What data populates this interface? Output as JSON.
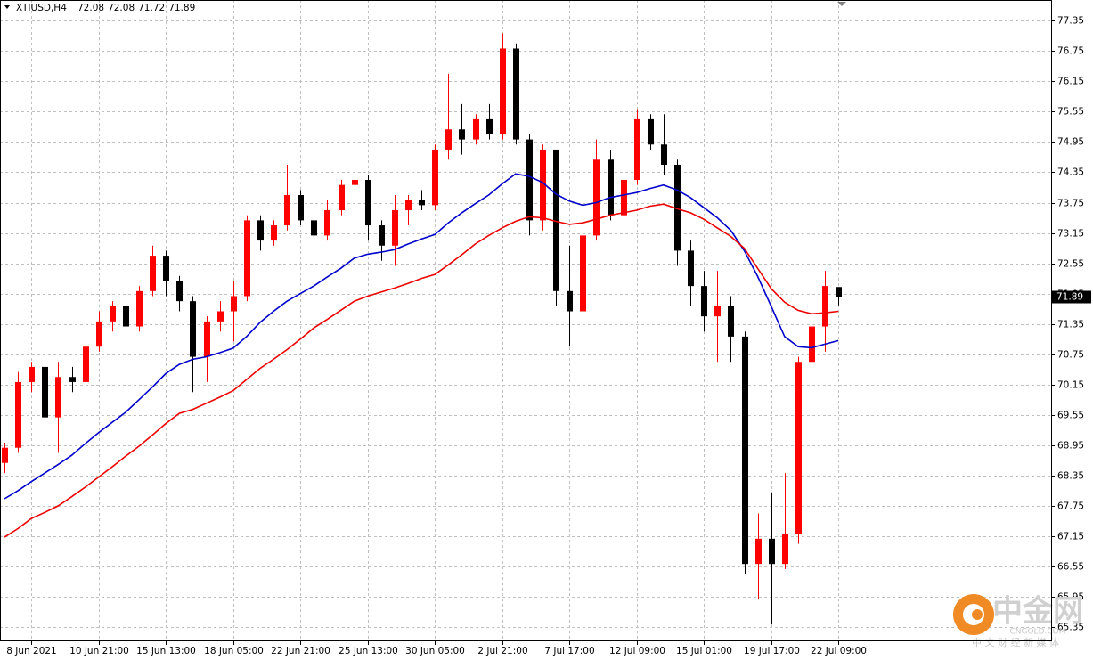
{
  "header": {
    "symbol": "XTIUSD,H4"
  },
  "watermark": {
    "brand": "中金网",
    "site": "CNGOLD.COM",
    "slogan": "中 文 财 经 新 媒 体"
  },
  "chart_data": {
    "type": "candlestick",
    "categories": [
      null,
      null,
      "8 Jun 2021",
      null,
      null,
      null,
      null,
      "10 Jun 21:00",
      null,
      null,
      null,
      null,
      "15 Jun 13:00",
      null,
      null,
      null,
      null,
      "18 Jun 05:00",
      null,
      null,
      null,
      null,
      "22 Jun 21:00",
      null,
      null,
      null,
      null,
      "25 Jun 13:00",
      null,
      null,
      null,
      null,
      "30 Jun 05:00",
      null,
      null,
      null,
      null,
      "2 Jul 21:00",
      null,
      null,
      null,
      null,
      "7 Jul 17:00",
      null,
      null,
      null,
      null,
      "12 Jul 09:00",
      null,
      null,
      null,
      null,
      "15 Jul 01:00",
      null,
      null,
      null,
      null,
      "19 Jul 17:00",
      null,
      null,
      null,
      null,
      "22 Jul 09:00"
    ],
    "open": [
      68.6,
      68.9,
      70.2,
      70.5,
      69.5,
      70.3,
      70.2,
      70.9,
      71.4,
      71.7,
      71.3,
      72.0,
      72.7,
      72.2,
      71.8,
      70.7,
      71.4,
      71.6,
      71.9,
      73.4,
      73.0,
      73.3,
      73.9,
      73.4,
      73.1,
      73.6,
      74.1,
      74.2,
      73.3,
      72.9,
      73.6,
      73.8,
      73.7,
      74.8,
      75.2,
      75.0,
      75.4,
      75.1,
      76.8,
      75.0,
      73.4,
      74.8,
      72.0,
      71.6,
      73.1,
      74.6,
      73.5,
      74.2,
      75.4,
      74.9,
      74.5,
      72.8,
      72.1,
      71.5,
      71.7,
      71.1,
      66.6,
      67.1,
      66.6,
      67.2,
      70.6,
      71.3,
      72.08
    ],
    "high": [
      69.0,
      70.4,
      70.6,
      70.6,
      70.6,
      70.5,
      71.0,
      71.6,
      71.8,
      71.8,
      72.1,
      72.9,
      72.8,
      72.3,
      71.9,
      71.5,
      71.8,
      72.2,
      73.5,
      73.5,
      73.4,
      74.5,
      74.0,
      73.5,
      73.8,
      74.2,
      74.4,
      74.3,
      73.4,
      73.9,
      73.9,
      74.0,
      74.9,
      76.3,
      75.7,
      75.5,
      75.7,
      77.1,
      76.9,
      75.1,
      74.9,
      74.8,
      72.9,
      73.3,
      75.0,
      74.8,
      74.4,
      75.6,
      75.5,
      75.5,
      74.6,
      73.0,
      72.4,
      72.4,
      71.9,
      71.2,
      67.6,
      68.0,
      68.4,
      70.7,
      71.4,
      72.4,
      72.08
    ],
    "low": [
      68.4,
      68.8,
      70.0,
      69.3,
      68.8,
      70.0,
      70.1,
      70.8,
      71.2,
      71.0,
      71.2,
      71.9,
      71.9,
      71.6,
      70.0,
      70.2,
      71.2,
      71.0,
      71.8,
      72.8,
      72.9,
      73.2,
      73.3,
      72.6,
      73.0,
      73.5,
      73.9,
      73.0,
      72.6,
      72.5,
      73.3,
      73.6,
      73.6,
      74.6,
      74.7,
      74.9,
      75.0,
      75.0,
      74.9,
      73.1,
      73.2,
      71.7,
      70.9,
      71.4,
      73.0,
      73.4,
      73.3,
      74.1,
      74.8,
      74.3,
      72.5,
      71.7,
      71.2,
      70.6,
      70.6,
      66.4,
      65.9,
      65.4,
      66.5,
      67.0,
      70.3,
      70.8,
      71.72
    ],
    "close": [
      68.9,
      70.2,
      70.5,
      69.5,
      70.3,
      70.2,
      70.9,
      71.4,
      71.7,
      71.3,
      72.0,
      72.7,
      72.2,
      71.8,
      70.7,
      71.4,
      71.6,
      71.9,
      73.4,
      73.0,
      73.3,
      73.9,
      73.4,
      73.1,
      73.6,
      74.1,
      74.2,
      73.3,
      72.9,
      73.6,
      73.8,
      73.7,
      74.8,
      75.2,
      75.0,
      75.4,
      75.1,
      76.8,
      75.0,
      73.4,
      74.8,
      72.0,
      71.6,
      73.1,
      74.6,
      73.5,
      74.2,
      75.4,
      74.9,
      74.5,
      72.8,
      72.1,
      71.5,
      71.7,
      71.1,
      66.6,
      67.1,
      66.6,
      67.2,
      70.6,
      71.3,
      72.1,
      71.89
    ],
    "up_color": "#ff0000",
    "down_color": "#000000",
    "moving_averages": [
      {
        "color": "#0000cc",
        "values": [
          67.89,
          68.05,
          68.23,
          68.4,
          68.57,
          68.75,
          68.98,
          69.2,
          69.4,
          69.6,
          69.85,
          70.1,
          70.37,
          70.55,
          70.65,
          70.7,
          70.78,
          70.87,
          71.1,
          71.38,
          71.6,
          71.8,
          71.95,
          72.1,
          72.28,
          72.45,
          72.65,
          72.73,
          72.77,
          72.82,
          72.93,
          73.03,
          73.12,
          73.35,
          73.55,
          73.73,
          73.9,
          74.12,
          74.32,
          74.27,
          74.15,
          73.92,
          73.78,
          73.7,
          73.75,
          73.85,
          73.9,
          73.95,
          74.03,
          74.1,
          74.0,
          73.85,
          73.65,
          73.45,
          73.2,
          72.8,
          72.29,
          71.7,
          71.1,
          70.9,
          70.88,
          70.95,
          71.02
        ]
      },
      {
        "color": "#ee0000",
        "values": [
          67.13,
          67.3,
          67.5,
          67.62,
          67.75,
          67.93,
          68.12,
          68.32,
          68.52,
          68.73,
          68.93,
          69.15,
          69.38,
          69.58,
          69.66,
          69.78,
          69.9,
          70.03,
          70.25,
          70.47,
          70.65,
          70.84,
          71.05,
          71.27,
          71.44,
          71.62,
          71.8,
          71.9,
          71.98,
          72.06,
          72.15,
          72.25,
          72.33,
          72.52,
          72.72,
          72.93,
          73.1,
          73.25,
          73.38,
          73.47,
          73.45,
          73.38,
          73.32,
          73.35,
          73.42,
          73.5,
          73.55,
          73.6,
          73.68,
          73.72,
          73.63,
          73.55,
          73.42,
          73.25,
          73.08,
          72.85,
          72.45,
          72.05,
          71.78,
          71.62,
          71.55,
          71.57,
          71.6
        ]
      }
    ],
    "current_price": 71.89,
    "ylim": [
      65.07,
      77.76
    ],
    "yticks": [
      77.35,
      76.75,
      76.15,
      75.55,
      74.95,
      74.35,
      73.75,
      73.15,
      72.55,
      71.95,
      71.35,
      70.75,
      70.15,
      69.55,
      68.95,
      68.35,
      67.75,
      67.15,
      66.55,
      65.95,
      65.35
    ],
    "grid": true
  }
}
